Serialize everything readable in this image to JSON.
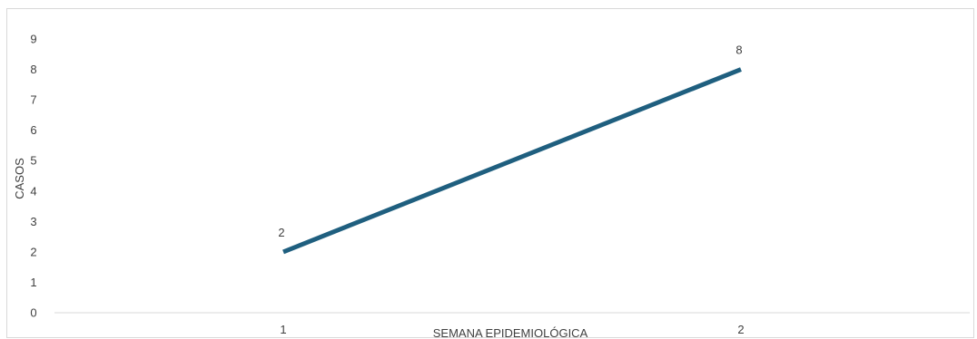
{
  "chart_data": {
    "type": "line",
    "title": "",
    "xlabel": "SEMANA EPIDEMIOLÓGICA",
    "ylabel": "CASOS",
    "categories": [
      "1",
      "2"
    ],
    "series": [
      {
        "values": [
          2,
          8
        ],
        "color": "#1f5f7f"
      }
    ],
    "ylim": [
      0,
      9
    ],
    "yticks": [
      0,
      1,
      2,
      3,
      4,
      5,
      6,
      7,
      8,
      9
    ],
    "data_labels": [
      "2",
      "8"
    ],
    "grid": false,
    "legend": "none"
  }
}
